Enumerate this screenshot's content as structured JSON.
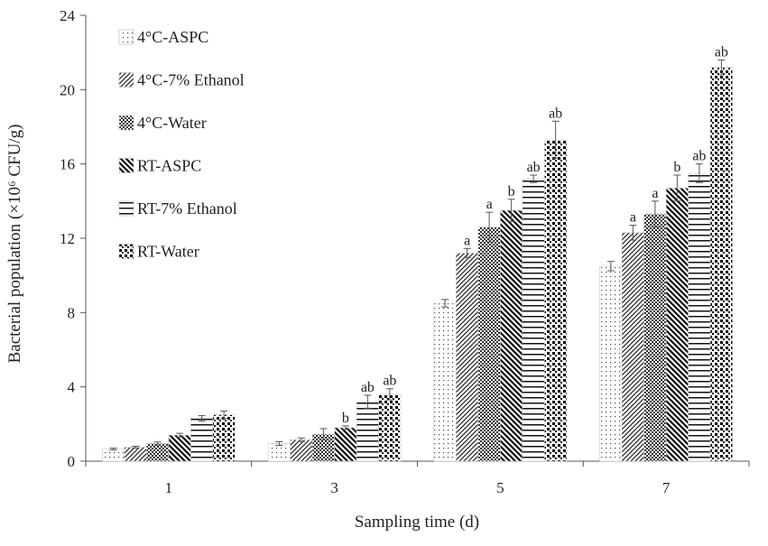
{
  "chart_data": {
    "type": "bar",
    "title": "",
    "xlabel": "Sampling time (d)",
    "ylabel": "Bacterial population (×10⁶ CFU/g)",
    "ylim": [
      0,
      24
    ],
    "yticks": [
      0,
      4,
      8,
      12,
      16,
      20,
      24
    ],
    "categories": [
      "1",
      "3",
      "5",
      "7"
    ],
    "legend_position": "top-left",
    "series": [
      {
        "name": "4°C-ASPC",
        "pattern": "dots-sparse",
        "values": [
          0.65,
          0.95,
          8.5,
          10.5
        ],
        "errors": [
          0.05,
          0.1,
          0.2,
          0.25
        ],
        "labels": [
          "",
          "",
          "",
          ""
        ]
      },
      {
        "name": "4°C-7% Ethanol",
        "pattern": "diag-left",
        "values": [
          0.75,
          1.15,
          11.2,
          12.3
        ],
        "errors": [
          0.05,
          0.1,
          0.25,
          0.4
        ],
        "labels": [
          "",
          "",
          "a",
          "a"
        ]
      },
      {
        "name": "4°C-Water",
        "pattern": "checker",
        "values": [
          0.95,
          1.45,
          12.6,
          13.3
        ],
        "errors": [
          0.08,
          0.3,
          0.8,
          0.7
        ],
        "labels": [
          "",
          "",
          "a",
          "a"
        ]
      },
      {
        "name": "RT-ASPC",
        "pattern": "diag-right",
        "values": [
          1.4,
          1.8,
          13.5,
          14.7
        ],
        "errors": [
          0.1,
          0.1,
          0.6,
          0.7
        ],
        "labels": [
          "",
          "b",
          "b",
          "b"
        ]
      },
      {
        "name": "RT-7% Ethanol",
        "pattern": "horizontal",
        "values": [
          2.3,
          3.2,
          15.2,
          15.5
        ],
        "errors": [
          0.15,
          0.35,
          0.2,
          0.5
        ],
        "labels": [
          "",
          "ab",
          "ab",
          "ab"
        ]
      },
      {
        "name": "RT-Water",
        "pattern": "dots-dense",
        "values": [
          2.5,
          3.6,
          17.3,
          21.2
        ],
        "errors": [
          0.2,
          0.3,
          1.0,
          0.4
        ],
        "labels": [
          "",
          "ab",
          "ab",
          "ab"
        ]
      }
    ]
  }
}
